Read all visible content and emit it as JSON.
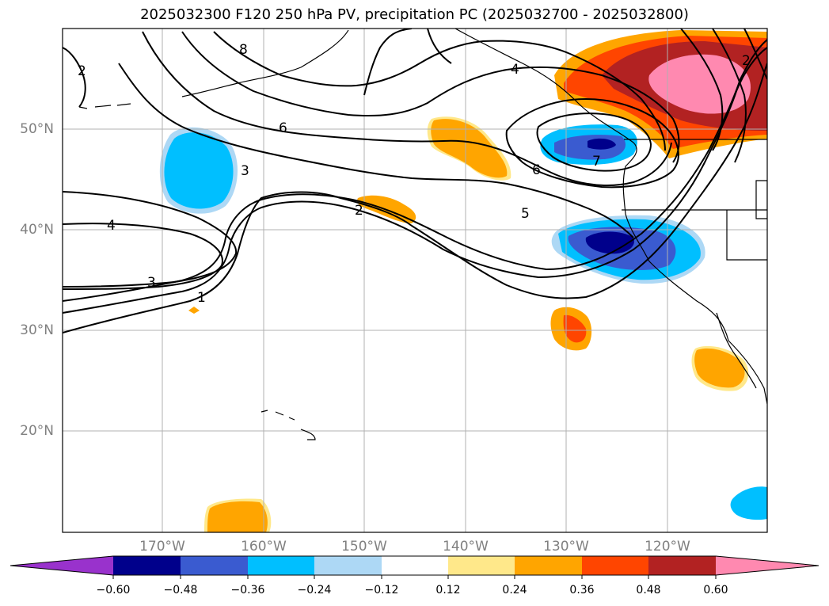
{
  "title": "2025032300 F120 250 hPa PV, precipitation PC (2025032700 - 2025032800)",
  "lat_labels": [
    "50°N",
    "40°N",
    "30°N",
    "20°N"
  ],
  "lon_labels": [
    "170°W",
    "160°W",
    "150°W",
    "140°W",
    "130°W",
    "120°W"
  ],
  "contour_labels": [
    "8",
    "2",
    "6",
    "3",
    "4",
    "2",
    "3",
    "1",
    "6",
    "5",
    "7",
    "4",
    "2"
  ],
  "colorbar": {
    "ticks": [
      "−0.60",
      "−0.48",
      "−0.36",
      "−0.24",
      "−0.12",
      "0.12",
      "0.24",
      "0.36",
      "0.48",
      "0.60"
    ],
    "colors": [
      "#9932cc",
      "#00008b",
      "#3a5bd0",
      "#00bfff",
      "#add8f5",
      "#ffffff",
      "#ffe88a",
      "#ffa500",
      "#ff4500",
      "#b22222",
      "#ff89b0"
    ]
  }
}
